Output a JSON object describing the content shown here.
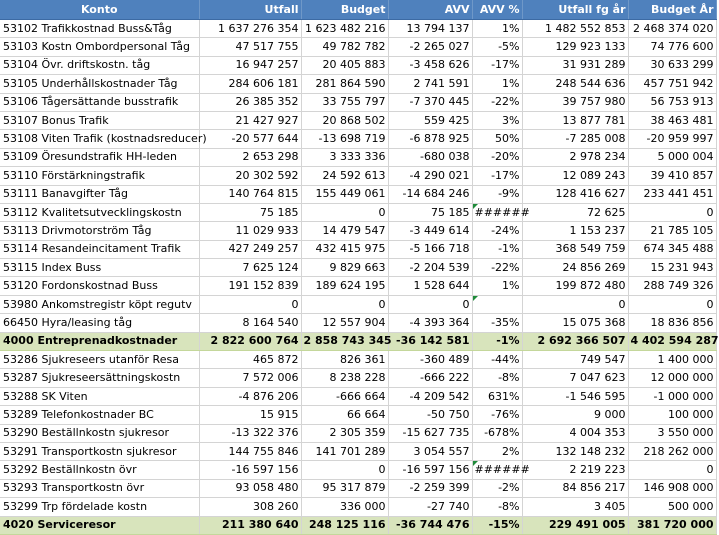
{
  "headers": [
    "Konto",
    "Utfall",
    "Budget",
    "AVV",
    "AVV %",
    "Utfall fg år",
    "Budget År"
  ],
  "rows": [
    {
      "konto": "53102 Trafikkostnad Buss&Tåg",
      "utfall": "1 637 276 354",
      "budget": "1 623 482 216",
      "avv": "13 794 137",
      "avv_pct": "1%",
      "utfall_fg": "1 482 552 853",
      "budget_ar": "2 468 374 020"
    },
    {
      "konto": "53103 Kostn Ombordpersonal Tåg",
      "utfall": "47 517 755",
      "budget": "49 782 782",
      "avv": "-2 265 027",
      "avv_pct": "-5%",
      "utfall_fg": "129 923 133",
      "budget_ar": "74 776 600"
    },
    {
      "konto": "53104 Övr. driftskostn. tåg",
      "utfall": "16 947 257",
      "budget": "20 405 883",
      "avv": "-3 458 626",
      "avv_pct": "-17%",
      "utfall_fg": "31 931 289",
      "budget_ar": "30 633 299"
    },
    {
      "konto": "53105 Underhållskostnader Tåg",
      "utfall": "284 606 181",
      "budget": "281 864 590",
      "avv": "2 741 591",
      "avv_pct": "1%",
      "utfall_fg": "248 544 636",
      "budget_ar": "457 751 942"
    },
    {
      "konto": "53106 Tågersättande busstrafik",
      "utfall": "26 385 352",
      "budget": "33 755 797",
      "avv": "-7 370 445",
      "avv_pct": "-22%",
      "utfall_fg": "39 757 980",
      "budget_ar": "56 753 913"
    },
    {
      "konto": "53107 Bonus Trafik",
      "utfall": "21 427 927",
      "budget": "20 868 502",
      "avv": "559 425",
      "avv_pct": "3%",
      "utfall_fg": "13 877 781",
      "budget_ar": "38 463 481"
    },
    {
      "konto": "53108 Viten Trafik (kostnadsreducer)",
      "utfall": "-20 577 644",
      "budget": "-13 698 719",
      "avv": "-6 878 925",
      "avv_pct": "50%",
      "utfall_fg": "-7 285 008",
      "budget_ar": "-20 959 997"
    },
    {
      "konto": "53109 Öresundstrafik HH-leden",
      "utfall": "2 653 298",
      "budget": "3 333 336",
      "avv": "-680 038",
      "avv_pct": "-20%",
      "utfall_fg": "2 978 234",
      "budget_ar": "5 000 004"
    },
    {
      "konto": "53110 Förstärkningstrafik",
      "utfall": "20 302 592",
      "budget": "24 592 613",
      "avv": "-4 290 021",
      "avv_pct": "-17%",
      "utfall_fg": "12 089 243",
      "budget_ar": "39 410 857"
    },
    {
      "konto": "53111 Banavgifter Tåg",
      "utfall": "140 764 815",
      "budget": "155 449 061",
      "avv": "-14 684 246",
      "avv_pct": "-9%",
      "utfall_fg": "128 416 627",
      "budget_ar": "233 441 451"
    },
    {
      "konto": "53112 Kvalitetsutvecklingskostn",
      "utfall": "75 185",
      "budget": "0",
      "avv": "75 185",
      "avv_pct": "######",
      "utfall_fg": "72 625",
      "budget_ar": "0",
      "flag": true
    },
    {
      "konto": "53113 Drivmotorström Tåg",
      "utfall": "11 029 933",
      "budget": "14 479 547",
      "avv": "-3 449 614",
      "avv_pct": "-24%",
      "utfall_fg": "1 153 237",
      "budget_ar": "21 785 105"
    },
    {
      "konto": "53114 Resandeincitament Trafik",
      "utfall": "427 249 257",
      "budget": "432 415 975",
      "avv": "-5 166 718",
      "avv_pct": "-1%",
      "utfall_fg": "368 549 759",
      "budget_ar": "674 345 488"
    },
    {
      "konto": "53115 Index Buss",
      "utfall": "7 625 124",
      "budget": "9 829 663",
      "avv": "-2 204 539",
      "avv_pct": "-22%",
      "utfall_fg": "24 856 269",
      "budget_ar": "15 231 943"
    },
    {
      "konto": "53120 Fordonskostnad Buss",
      "utfall": "191 152 839",
      "budget": "189 624 195",
      "avv": "1 528 644",
      "avv_pct": "1%",
      "utfall_fg": "199 872 480",
      "budget_ar": "288 749 326"
    },
    {
      "konto": "53980 Ankomstregistr köpt regutv",
      "utfall": "0",
      "budget": "0",
      "avv": "0",
      "avv_pct": "",
      "utfall_fg": "0",
      "budget_ar": "0",
      "flag": true
    },
    {
      "konto": "66450 Hyra/leasing tåg",
      "utfall": "8 164 540",
      "budget": "12 557 904",
      "avv": "-4 393 364",
      "avv_pct": "-35%",
      "utfall_fg": "15 075 368",
      "budget_ar": "18 836 856"
    },
    {
      "konto": "4000 Entreprenadkostnader",
      "utfall": "2 822 600 764",
      "budget": "2 858 743 345",
      "avv": "-36 142 581",
      "avv_pct": "-1%",
      "utfall_fg": "2 692 366 507",
      "budget_ar": "4 402 594 287",
      "sum": true
    },
    {
      "konto": "53286 Sjukreseers utanför Resa",
      "utfall": "465 872",
      "budget": "826 361",
      "avv": "-360 489",
      "avv_pct": "-44%",
      "utfall_fg": "749 547",
      "budget_ar": "1 400 000"
    },
    {
      "konto": "53287 Sjukreseersättningskostn",
      "utfall": "7 572 006",
      "budget": "8 238 228",
      "avv": "-666 222",
      "avv_pct": "-8%",
      "utfall_fg": "7 047 623",
      "budget_ar": "12 000 000"
    },
    {
      "konto": "53288 SK Viten",
      "utfall": "-4 876 206",
      "budget": "-666 664",
      "avv": "-4 209 542",
      "avv_pct": "631%",
      "utfall_fg": "-1 546 595",
      "budget_ar": "-1 000 000"
    },
    {
      "konto": "53289 Telefonkostnader BC",
      "utfall": "15 915",
      "budget": "66 664",
      "avv": "-50 750",
      "avv_pct": "-76%",
      "utfall_fg": "9 000",
      "budget_ar": "100 000"
    },
    {
      "konto": "53290 Beställnkostn sjukresor",
      "utfall": "-13 322 376",
      "budget": "2 305 359",
      "avv": "-15 627 735",
      "avv_pct": "-678%",
      "utfall_fg": "4 004 353",
      "budget_ar": "3 550 000"
    },
    {
      "konto": "53291 Transportkostn sjukresor",
      "utfall": "144 755 846",
      "budget": "141 701 289",
      "avv": "3 054 557",
      "avv_pct": "2%",
      "utfall_fg": "132 148 232",
      "budget_ar": "218 262 000"
    },
    {
      "konto": "53292 Beställnkostn övr",
      "utfall": "-16 597 156",
      "budget": "0",
      "avv": "-16 597 156",
      "avv_pct": "######",
      "utfall_fg": "2 219 223",
      "budget_ar": "0",
      "flag": true
    },
    {
      "konto": "53293 Transportkostn övr",
      "utfall": "93 058 480",
      "budget": "95 317 879",
      "avv": "-2 259 399",
      "avv_pct": "-2%",
      "utfall_fg": "84 856 217",
      "budget_ar": "146 908 000"
    },
    {
      "konto": "53299 Trp fördelade kostn",
      "utfall": "308 260",
      "budget": "336 000",
      "avv": "-27 740",
      "avv_pct": "-8%",
      "utfall_fg": "3 405",
      "budget_ar": "500 000"
    },
    {
      "konto": "4020 Serviceresor",
      "utfall": "211 380 640",
      "budget": "248 125 116",
      "avv": "-36 744 476",
      "avv_pct": "-15%",
      "utfall_fg": "229 491 005",
      "budget_ar": "381 720 000",
      "sum": true
    }
  ]
}
